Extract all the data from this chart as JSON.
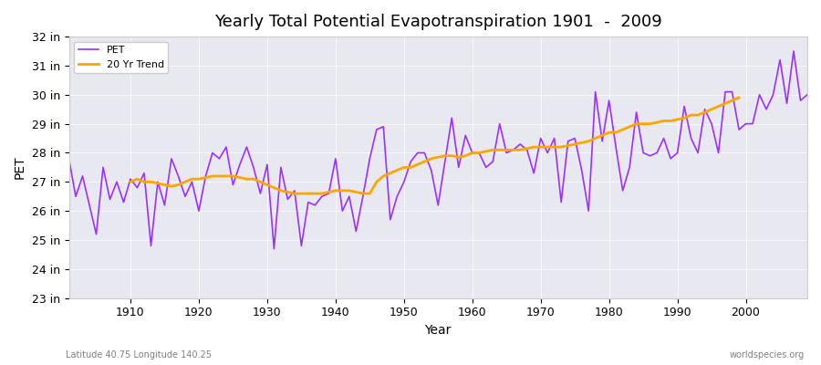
{
  "title": "Yearly Total Potential Evapotranspiration 1901  -  2009",
  "xlabel": "Year",
  "ylabel": "PET",
  "bottom_left": "Latitude 40.75 Longitude 140.25",
  "bottom_right": "worldspecies.org",
  "ylim": [
    23,
    32
  ],
  "yticks": [
    23,
    24,
    25,
    26,
    27,
    28,
    29,
    30,
    31,
    32
  ],
  "ytick_labels": [
    "23 in",
    "24 in",
    "25 in",
    "26 in",
    "27 in",
    "28 in",
    "29 in",
    "30 in",
    "31 in",
    "32 in"
  ],
  "xticks": [
    1910,
    1920,
    1930,
    1940,
    1950,
    1960,
    1970,
    1980,
    1990,
    2000
  ],
  "pet_color": "#9B30FF",
  "trend_color": "#FFA500",
  "bg_color": "#E8E8F0",
  "legend_items": [
    "PET",
    "20 Yr Trend"
  ],
  "years": [
    1901,
    1902,
    1903,
    1904,
    1905,
    1906,
    1907,
    1908,
    1909,
    1910,
    1911,
    1912,
    1913,
    1914,
    1915,
    1916,
    1917,
    1918,
    1919,
    1920,
    1921,
    1922,
    1923,
    1924,
    1925,
    1926,
    1927,
    1928,
    1929,
    1930,
    1931,
    1932,
    1933,
    1934,
    1935,
    1936,
    1937,
    1938,
    1939,
    1940,
    1941,
    1942,
    1943,
    1944,
    1945,
    1946,
    1947,
    1948,
    1949,
    1950,
    1951,
    1952,
    1953,
    1954,
    1955,
    1956,
    1957,
    1958,
    1959,
    1960,
    1961,
    1962,
    1963,
    1964,
    1965,
    1966,
    1967,
    1968,
    1969,
    1970,
    1971,
    1972,
    1973,
    1974,
    1975,
    1976,
    1977,
    1978,
    1979,
    1980,
    1981,
    1982,
    1983,
    1984,
    1985,
    1986,
    1987,
    1988,
    1989,
    1990,
    1991,
    1992,
    1993,
    1994,
    1995,
    1996,
    1997,
    1998,
    1999,
    2000,
    2001,
    2002,
    2003,
    2004,
    2005,
    2006,
    2007,
    2008,
    2009
  ],
  "pet_values": [
    27.8,
    26.5,
    27.2,
    26.2,
    25.2,
    27.5,
    26.4,
    27.0,
    26.3,
    27.1,
    26.8,
    27.3,
    24.8,
    27.0,
    26.2,
    27.8,
    27.2,
    26.5,
    27.0,
    26.0,
    27.2,
    28.0,
    27.8,
    28.2,
    26.9,
    27.6,
    28.2,
    27.5,
    26.6,
    27.6,
    24.7,
    27.5,
    26.4,
    26.7,
    24.8,
    26.3,
    26.2,
    26.5,
    26.6,
    27.8,
    26.0,
    26.5,
    25.3,
    26.5,
    27.8,
    28.8,
    28.9,
    25.7,
    26.5,
    27.0,
    27.7,
    28.0,
    28.0,
    27.4,
    26.2,
    27.7,
    29.2,
    27.5,
    28.6,
    28.0,
    28.0,
    27.5,
    27.7,
    29.0,
    28.0,
    28.1,
    28.3,
    28.1,
    27.3,
    28.5,
    28.0,
    28.5,
    26.3,
    28.4,
    28.5,
    27.4,
    26.0,
    30.1,
    28.4,
    29.8,
    28.2,
    26.7,
    27.5,
    29.4,
    28.0,
    27.9,
    28.0,
    28.5,
    27.8,
    28.0,
    29.6,
    28.5,
    28.0,
    29.5,
    29.0,
    28.0,
    30.1,
    30.1,
    28.8,
    29.0,
    29.0,
    30.0,
    29.5,
    30.0,
    31.2,
    29.7,
    31.5,
    29.8,
    30.0
  ],
  "trend_values": [
    null,
    null,
    null,
    null,
    null,
    null,
    null,
    null,
    null,
    27.0,
    27.1,
    27.0,
    27.0,
    26.95,
    26.9,
    26.85,
    26.9,
    27.0,
    27.1,
    27.1,
    27.15,
    27.2,
    27.2,
    27.2,
    27.2,
    27.15,
    27.1,
    27.1,
    27.0,
    26.9,
    26.8,
    26.7,
    26.65,
    26.6,
    26.6,
    26.6,
    26.6,
    26.6,
    26.65,
    26.7,
    26.7,
    26.7,
    26.65,
    26.6,
    26.6,
    27.0,
    27.2,
    27.3,
    27.4,
    27.5,
    27.5,
    27.6,
    27.7,
    27.8,
    27.85,
    27.9,
    27.9,
    27.85,
    27.9,
    28.0,
    28.0,
    28.05,
    28.1,
    28.1,
    28.1,
    28.1,
    28.1,
    28.15,
    28.2,
    28.2,
    28.2,
    28.2,
    28.2,
    28.25,
    28.3,
    28.35,
    28.4,
    28.5,
    28.6,
    28.7,
    28.7,
    28.8,
    28.9,
    29.0,
    29.0,
    29.0,
    29.05,
    29.1,
    29.1,
    29.15,
    29.2,
    29.3,
    29.3,
    29.4,
    29.5,
    29.6,
    29.7,
    29.8,
    29.9,
    null,
    null,
    null,
    null,
    null,
    null,
    null,
    null,
    null,
    null
  ]
}
